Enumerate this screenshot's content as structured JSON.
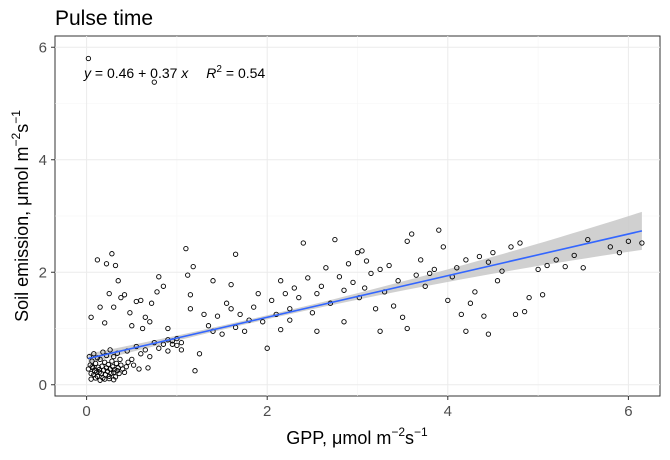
{
  "chart_data": {
    "type": "scatter",
    "title": "Pulse time",
    "xlabel": {
      "base": "GPP, ",
      "mu": "μ",
      "unit": "mol m",
      "sup1": "−2",
      "s": "s",
      "sup2": "−1"
    },
    "ylabel": {
      "base": "Soil emission, ",
      "mu": "μ",
      "unit": "mol m",
      "sup1": "−2",
      "s": "s",
      "sup2": "−1"
    },
    "xlim": [
      -0.35,
      6.35
    ],
    "ylim": [
      -0.2,
      6.2
    ],
    "xticks": [
      0,
      2,
      4,
      6
    ],
    "yticks": [
      0,
      2,
      4,
      6
    ],
    "grid": true,
    "annotation": {
      "eq_y": "y",
      "eq_rest": " = 0.46 + 0.37 ",
      "eq_x": "x",
      "r2": "R",
      "r2_sup": "2",
      "r2_val": " = 0.54"
    },
    "fit": {
      "intercept": 0.46,
      "slope": 0.37,
      "x_range": [
        0.02,
        6.15
      ],
      "color": "#3366ff",
      "band_color": "#c8c8c8"
    },
    "points": [
      [
        0.02,
        5.8
      ],
      [
        0.75,
        5.38
      ],
      [
        0.02,
        0.28
      ],
      [
        0.04,
        0.35
      ],
      [
        0.05,
        0.2
      ],
      [
        0.06,
        0.42
      ],
      [
        0.07,
        0.3
      ],
      [
        0.08,
        0.18
      ],
      [
        0.09,
        0.25
      ],
      [
        0.1,
        0.38
      ],
      [
        0.11,
        0.22
      ],
      [
        0.12,
        0.15
      ],
      [
        0.13,
        0.31
      ],
      [
        0.14,
        0.27
      ],
      [
        0.15,
        0.45
      ],
      [
        0.16,
        0.2
      ],
      [
        0.17,
        0.33
      ],
      [
        0.18,
        0.12
      ],
      [
        0.19,
        0.26
      ],
      [
        0.2,
        0.4
      ],
      [
        0.21,
        0.18
      ],
      [
        0.22,
        0.3
      ],
      [
        0.23,
        0.24
      ],
      [
        0.24,
        0.36
      ],
      [
        0.25,
        0.15
      ],
      [
        0.26,
        0.28
      ],
      [
        0.27,
        0.2
      ],
      [
        0.28,
        0.42
      ],
      [
        0.29,
        0.32
      ],
      [
        0.3,
        0.22
      ],
      [
        0.31,
        0.27
      ],
      [
        0.32,
        0.14
      ],
      [
        0.33,
        0.38
      ],
      [
        0.34,
        0.25
      ],
      [
        0.35,
        0.3
      ],
      [
        0.36,
        0.2
      ],
      [
        0.37,
        0.45
      ],
      [
        0.38,
        0.35
      ],
      [
        0.4,
        0.28
      ],
      [
        0.42,
        0.22
      ],
      [
        0.44,
        0.32
      ],
      [
        0.46,
        0.4
      ],
      [
        0.03,
        0.5
      ],
      [
        0.08,
        0.55
      ],
      [
        0.12,
        0.48
      ],
      [
        0.18,
        0.58
      ],
      [
        0.22,
        0.52
      ],
      [
        0.26,
        0.62
      ],
      [
        0.3,
        0.5
      ],
      [
        0.34,
        0.56
      ],
      [
        0.05,
        0.1
      ],
      [
        0.1,
        0.12
      ],
      [
        0.15,
        0.08
      ],
      [
        0.2,
        0.1
      ],
      [
        0.25,
        0.11
      ],
      [
        0.3,
        0.09
      ],
      [
        0.14,
        0.22
      ],
      [
        0.06,
        0.32
      ],
      [
        0.05,
        1.2
      ],
      [
        0.12,
        2.22
      ],
      [
        0.15,
        1.38
      ],
      [
        0.2,
        1.1
      ],
      [
        0.22,
        2.15
      ],
      [
        0.25,
        1.62
      ],
      [
        0.28,
        2.33
      ],
      [
        0.3,
        1.38
      ],
      [
        0.32,
        2.12
      ],
      [
        0.35,
        1.85
      ],
      [
        0.38,
        1.55
      ],
      [
        0.42,
        1.6
      ],
      [
        0.48,
        1.28
      ],
      [
        0.5,
        1.05
      ],
      [
        0.55,
        1.48
      ],
      [
        0.6,
        1.5
      ],
      [
        0.62,
        1.0
      ],
      [
        0.65,
        1.2
      ],
      [
        0.7,
        1.12
      ],
      [
        0.72,
        1.45
      ],
      [
        0.78,
        1.65
      ],
      [
        0.8,
        1.92
      ],
      [
        0.85,
        1.75
      ],
      [
        0.9,
        0.8
      ],
      [
        0.95,
        0.72
      ],
      [
        1.0,
        0.82
      ],
      [
        1.05,
        0.75
      ],
      [
        1.1,
        2.42
      ],
      [
        1.12,
        1.95
      ],
      [
        1.15,
        1.6
      ],
      [
        1.18,
        2.1
      ],
      [
        1.2,
        0.25
      ],
      [
        0.45,
        0.6
      ],
      [
        0.5,
        0.45
      ],
      [
        0.55,
        0.68
      ],
      [
        0.6,
        0.55
      ],
      [
        0.65,
        0.62
      ],
      [
        0.7,
        0.5
      ],
      [
        0.75,
        0.75
      ],
      [
        0.8,
        0.65
      ],
      [
        0.85,
        0.72
      ],
      [
        0.9,
        0.6
      ],
      [
        0.95,
        0.78
      ],
      [
        1.0,
        0.7
      ],
      [
        1.05,
        0.62
      ],
      [
        0.52,
        0.35
      ],
      [
        0.58,
        0.28
      ],
      [
        0.68,
        0.3
      ],
      [
        1.3,
        1.25
      ],
      [
        1.35,
        1.05
      ],
      [
        1.4,
        0.95
      ],
      [
        1.45,
        1.22
      ],
      [
        1.5,
        0.9
      ],
      [
        1.55,
        1.45
      ],
      [
        1.6,
        1.35
      ],
      [
        1.65,
        1.02
      ],
      [
        1.7,
        1.25
      ],
      [
        1.75,
        0.95
      ],
      [
        1.8,
        1.15
      ],
      [
        1.85,
        1.38
      ],
      [
        1.9,
        1.62
      ],
      [
        1.95,
        1.12
      ],
      [
        2.0,
        0.65
      ],
      [
        2.05,
        1.5
      ],
      [
        2.1,
        1.25
      ],
      [
        2.15,
        1.85
      ],
      [
        2.2,
        1.62
      ],
      [
        2.25,
        1.35
      ],
      [
        2.3,
        1.72
      ],
      [
        2.35,
        1.55
      ],
      [
        2.4,
        2.52
      ],
      [
        2.45,
        1.9
      ],
      [
        2.5,
        1.28
      ],
      [
        2.55,
        1.62
      ],
      [
        2.6,
        1.75
      ],
      [
        2.65,
        2.08
      ],
      [
        2.7,
        1.45
      ],
      [
        2.75,
        2.58
      ],
      [
        2.8,
        1.92
      ],
      [
        2.85,
        1.68
      ],
      [
        2.9,
        2.15
      ],
      [
        2.95,
        1.82
      ],
      [
        3.0,
        2.35
      ],
      [
        3.02,
        1.55
      ],
      [
        3.05,
        2.38
      ],
      [
        3.08,
        1.72
      ],
      [
        3.1,
        2.2
      ],
      [
        3.15,
        1.98
      ],
      [
        3.2,
        1.35
      ],
      [
        3.25,
        2.05
      ],
      [
        3.3,
        1.65
      ],
      [
        3.35,
        2.12
      ],
      [
        3.4,
        1.4
      ],
      [
        3.45,
        1.85
      ],
      [
        3.5,
        1.2
      ],
      [
        3.55,
        2.55
      ],
      [
        3.6,
        2.68
      ],
      [
        3.65,
        1.95
      ],
      [
        3.7,
        2.22
      ],
      [
        3.75,
        1.75
      ],
      [
        3.8,
        1.98
      ],
      [
        3.85,
        2.05
      ],
      [
        3.9,
        2.75
      ],
      [
        3.95,
        2.45
      ],
      [
        4.0,
        1.5
      ],
      [
        4.05,
        1.92
      ],
      [
        4.1,
        2.08
      ],
      [
        4.15,
        1.25
      ],
      [
        4.2,
        2.22
      ],
      [
        4.25,
        1.45
      ],
      [
        4.3,
        1.65
      ],
      [
        4.35,
        2.28
      ],
      [
        4.4,
        1.22
      ],
      [
        4.45,
        2.18
      ],
      [
        4.5,
        2.35
      ],
      [
        4.55,
        1.85
      ],
      [
        4.6,
        2.02
      ],
      [
        4.7,
        2.45
      ],
      [
        4.8,
        2.52
      ],
      [
        4.9,
        1.55
      ],
      [
        5.0,
        2.05
      ],
      [
        5.05,
        1.6
      ],
      [
        5.1,
        2.12
      ],
      [
        5.2,
        2.22
      ],
      [
        5.3,
        2.1
      ],
      [
        5.4,
        2.3
      ],
      [
        5.5,
        2.08
      ],
      [
        5.55,
        2.58
      ],
      [
        5.8,
        2.45
      ],
      [
        5.9,
        2.35
      ],
      [
        6.0,
        2.55
      ],
      [
        6.15,
        2.52
      ],
      [
        1.6,
        1.78
      ],
      [
        1.65,
        2.32
      ],
      [
        2.15,
        0.98
      ],
      [
        2.25,
        1.15
      ],
      [
        2.55,
        0.95
      ],
      [
        2.85,
        1.12
      ],
      [
        3.25,
        0.95
      ],
      [
        3.55,
        1.0
      ],
      [
        4.2,
        0.95
      ],
      [
        4.45,
        0.9
      ],
      [
        4.75,
        1.25
      ],
      [
        4.85,
        1.3
      ],
      [
        1.25,
        0.55
      ],
      [
        1.4,
        1.85
      ],
      [
        1.15,
        1.35
      ],
      [
        0.9,
        1.0
      ]
    ]
  }
}
